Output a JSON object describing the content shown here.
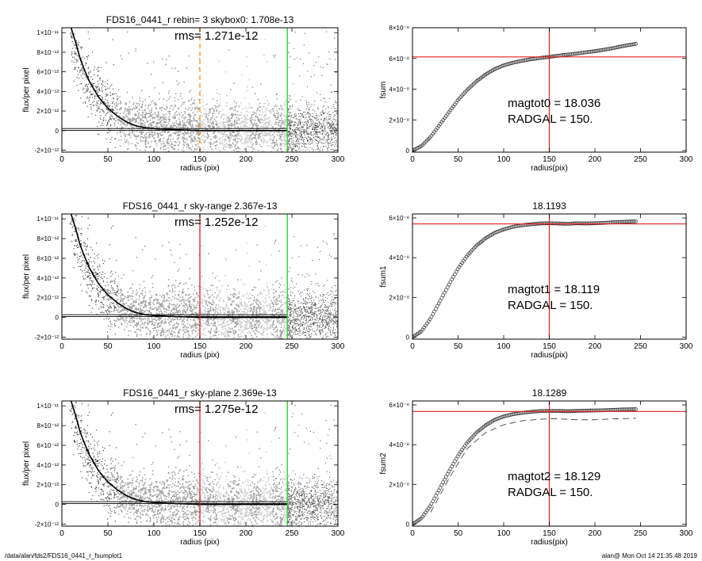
{
  "footer": {
    "path": "/data/alan/fds2/FDS16_0441_r_fsumplot1",
    "user_time": "alan@  Mon Oct 14 21:35:48 2019"
  },
  "colors": {
    "red": "#e02020",
    "green": "#22cc22",
    "orange": "#f0932b",
    "gray": "#9a9a9a",
    "light": "#c8c8c8"
  },
  "chart_data": [
    {
      "type": "scatter",
      "title": "FDS16_0441_r rebin= 3    skybox0:  1.708e-13",
      "annotation": "rms= 1.271e-12",
      "xlabel": "radius (pix)",
      "ylabel": "flux/per pixel",
      "xlim": [
        0,
        300
      ],
      "ylim": [
        -2.2e-12,
        1.05e-11
      ],
      "xticks": [
        0,
        50,
        100,
        150,
        200,
        250,
        300
      ],
      "yticks": [
        -2e-12,
        0,
        2e-12,
        4e-12,
        6e-12,
        8e-12,
        1e-11
      ],
      "ytick_labels": [
        "-2×10⁻¹²",
        "0",
        "2×10⁻¹²",
        "4×10⁻¹²",
        "6×10⁻¹²",
        "8×10⁻¹²",
        "1×10⁻¹¹"
      ],
      "vlines": [
        {
          "x": 150,
          "color": "orange",
          "style": "dashed"
        },
        {
          "x": 245,
          "color": "green",
          "style": "solid"
        }
      ],
      "profile": {
        "x": [
          10,
          15,
          20,
          25,
          30,
          40,
          50,
          60,
          70,
          80,
          90,
          100,
          120,
          150,
          200,
          245
        ],
        "y": [
          1.05e-11,
          9e-12,
          7.3e-12,
          6.1e-12,
          5e-12,
          3.4e-12,
          2.3e-12,
          1.5e-12,
          9e-13,
          5e-13,
          3e-13,
          2e-13,
          1e-13,
          0,
          0,
          0
        ]
      },
      "sky_band": [
        1.708e-13,
        4e-14
      ]
    },
    {
      "type": "line",
      "title": "",
      "xlabel": "radius(pix)",
      "ylabel": "fsum",
      "xlim": [
        0,
        300
      ],
      "ylim": [
        -1e-09,
        8e-08
      ],
      "xticks": [
        0,
        50,
        100,
        150,
        200,
        250,
        300
      ],
      "yticks": [
        0,
        2e-08,
        4e-08,
        6e-08,
        8e-08
      ],
      "ytick_labels": [
        "0",
        "2×10⁻⁸",
        "4×10⁻⁸",
        "6×10⁻⁸",
        "8×10⁻⁸"
      ],
      "annotations": [
        "magtot0 =  18.036",
        "RADGAL =    150."
      ],
      "vline": 150,
      "hline": 6.1e-08,
      "curve": {
        "x": [
          0,
          10,
          20,
          30,
          40,
          50,
          60,
          70,
          80,
          90,
          100,
          110,
          120,
          130,
          140,
          150,
          160,
          170,
          180,
          190,
          200,
          210,
          220,
          230,
          240,
          245
        ],
        "y": [
          0,
          3e-09,
          9e-09,
          1.7e-08,
          2.5e-08,
          3.3e-08,
          3.95e-08,
          4.5e-08,
          4.95e-08,
          5.3e-08,
          5.55e-08,
          5.72e-08,
          5.85e-08,
          5.95e-08,
          6.03e-08,
          6.1e-08,
          6.18e-08,
          6.25e-08,
          6.32e-08,
          6.4e-08,
          6.47e-08,
          6.57e-08,
          6.67e-08,
          6.8e-08,
          6.9e-08,
          6.95e-08
        ]
      }
    },
    {
      "type": "scatter",
      "title": "FDS16_0441_r sky-range  2.367e-13",
      "annotation": "rms= 1.252e-12",
      "xlabel": "radius (pix)",
      "ylabel": "flux/per pixel",
      "xlim": [
        0,
        300
      ],
      "ylim": [
        -2.2e-12,
        1.05e-11
      ],
      "xticks": [
        0,
        50,
        100,
        150,
        200,
        250,
        300
      ],
      "yticks": [
        -2e-12,
        0,
        2e-12,
        4e-12,
        6e-12,
        8e-12,
        1e-11
      ],
      "ytick_labels": [
        "-2×10⁻¹²",
        "0",
        "2×10⁻¹²",
        "4×10⁻¹²",
        "6×10⁻¹²",
        "8×10⁻¹²",
        "1×10⁻¹¹"
      ],
      "vlines": [
        {
          "x": 150,
          "color": "red",
          "style": "solid"
        },
        {
          "x": 245,
          "color": "green",
          "style": "solid"
        }
      ],
      "profile": {
        "x": [
          10,
          15,
          20,
          25,
          30,
          40,
          50,
          60,
          70,
          80,
          90,
          100,
          120,
          150,
          200,
          245
        ],
        "y": [
          1.05e-11,
          9e-12,
          7.3e-12,
          6.1e-12,
          5e-12,
          3.4e-12,
          2.3e-12,
          1.5e-12,
          9e-13,
          5e-13,
          3e-13,
          2e-13,
          1e-13,
          0,
          0,
          0
        ]
      },
      "sky_band": [
        2.367e-13,
        4e-14
      ]
    },
    {
      "type": "line",
      "title": "18.1193",
      "xlabel": "radius(pix)",
      "ylabel": "fsum1",
      "xlim": [
        0,
        300
      ],
      "ylim": [
        -1e-09,
        6.2e-08
      ],
      "xticks": [
        0,
        50,
        100,
        150,
        200,
        250,
        300
      ],
      "yticks": [
        0,
        2e-08,
        4e-08,
        6e-08
      ],
      "ytick_labels": [
        "0",
        "2×10⁻⁸",
        "4×10⁻⁸",
        "6×10⁻⁸"
      ],
      "annotations": [
        "magtot1 =  18.119",
        "RADGAL =    150."
      ],
      "vline": 150,
      "hline": 5.7e-08,
      "curve": {
        "x": [
          0,
          10,
          20,
          30,
          40,
          50,
          60,
          70,
          80,
          90,
          100,
          110,
          120,
          130,
          140,
          150,
          160,
          170,
          180,
          190,
          200,
          210,
          220,
          230,
          240,
          245
        ],
        "y": [
          0,
          3e-09,
          9.5e-09,
          1.8e-08,
          2.65e-08,
          3.45e-08,
          4.1e-08,
          4.6e-08,
          4.97e-08,
          5.25e-08,
          5.42e-08,
          5.55e-08,
          5.63e-08,
          5.68e-08,
          5.72e-08,
          5.73e-08,
          5.72e-08,
          5.7e-08,
          5.73e-08,
          5.72e-08,
          5.73e-08,
          5.75e-08,
          5.78e-08,
          5.8e-08,
          5.82e-08,
          5.83e-08
        ]
      }
    },
    {
      "type": "scatter",
      "title": "FDS16_0441_r sky-plane  2.369e-13",
      "annotation": "rms= 1.275e-12",
      "xlabel": "radius (pix)",
      "ylabel": "flux/per pixel",
      "xlim": [
        0,
        300
      ],
      "ylim": [
        -2.2e-12,
        1.05e-11
      ],
      "xticks": [
        0,
        50,
        100,
        150,
        200,
        250,
        300
      ],
      "yticks": [
        -2e-12,
        0,
        2e-12,
        4e-12,
        6e-12,
        8e-12,
        1e-11
      ],
      "ytick_labels": [
        "-2×10⁻¹²",
        "0",
        "2×10⁻¹²",
        "4×10⁻¹²",
        "6×10⁻¹²",
        "8×10⁻¹²",
        "1×10⁻¹¹"
      ],
      "vlines": [
        {
          "x": 150,
          "color": "red",
          "style": "solid"
        },
        {
          "x": 245,
          "color": "green",
          "style": "solid"
        }
      ],
      "profile": {
        "x": [
          10,
          15,
          20,
          25,
          30,
          40,
          50,
          60,
          70,
          80,
          90,
          100,
          120,
          150,
          200,
          245
        ],
        "y": [
          1.05e-11,
          9e-12,
          7.3e-12,
          6.1e-12,
          5e-12,
          3.4e-12,
          2.3e-12,
          1.5e-12,
          9e-13,
          5e-13,
          3e-13,
          2e-13,
          1e-13,
          0,
          0,
          0
        ]
      },
      "sky_band": [
        2.369e-13,
        4e-14
      ]
    },
    {
      "type": "line",
      "title": "18.1289",
      "xlabel": "radius(pix)",
      "ylabel": "fsum2",
      "xlim": [
        0,
        300
      ],
      "ylim": [
        -1e-09,
        6.2e-08
      ],
      "xticks": [
        0,
        50,
        100,
        150,
        200,
        250,
        300
      ],
      "yticks": [
        0,
        2e-08,
        4e-08,
        6e-08
      ],
      "ytick_labels": [
        "0",
        "2×10⁻⁸",
        "4×10⁻⁸",
        "6×10⁻⁸"
      ],
      "annotations": [
        "magtot2 =  18.129",
        "RADGAL =    150."
      ],
      "vline": 150,
      "hline": 5.67e-08,
      "curve": {
        "x": [
          0,
          10,
          20,
          30,
          40,
          50,
          60,
          70,
          80,
          90,
          100,
          110,
          120,
          130,
          140,
          150,
          160,
          170,
          180,
          190,
          200,
          210,
          220,
          230,
          240,
          245
        ],
        "y": [
          0,
          3e-09,
          9.5e-09,
          1.8e-08,
          2.65e-08,
          3.45e-08,
          4.1e-08,
          4.6e-08,
          4.97e-08,
          5.25e-08,
          5.42e-08,
          5.53e-08,
          5.6e-08,
          5.65e-08,
          5.69e-08,
          5.7e-08,
          5.7e-08,
          5.68e-08,
          5.7e-08,
          5.71e-08,
          5.72e-08,
          5.73e-08,
          5.75e-08,
          5.77e-08,
          5.78e-08,
          5.78e-08
        ]
      },
      "dashed_curve": {
        "x": [
          20,
          40,
          60,
          80,
          100,
          120,
          140,
          150,
          160,
          180,
          200,
          220,
          240,
          245
        ],
        "y": [
          6e-09,
          2.3e-08,
          3.8e-08,
          4.6e-08,
          5e-08,
          5.2e-08,
          5.28e-08,
          5.3e-08,
          5.3e-08,
          5.25e-08,
          5.25e-08,
          5.3e-08,
          5.32e-08,
          5.33e-08
        ]
      }
    }
  ]
}
